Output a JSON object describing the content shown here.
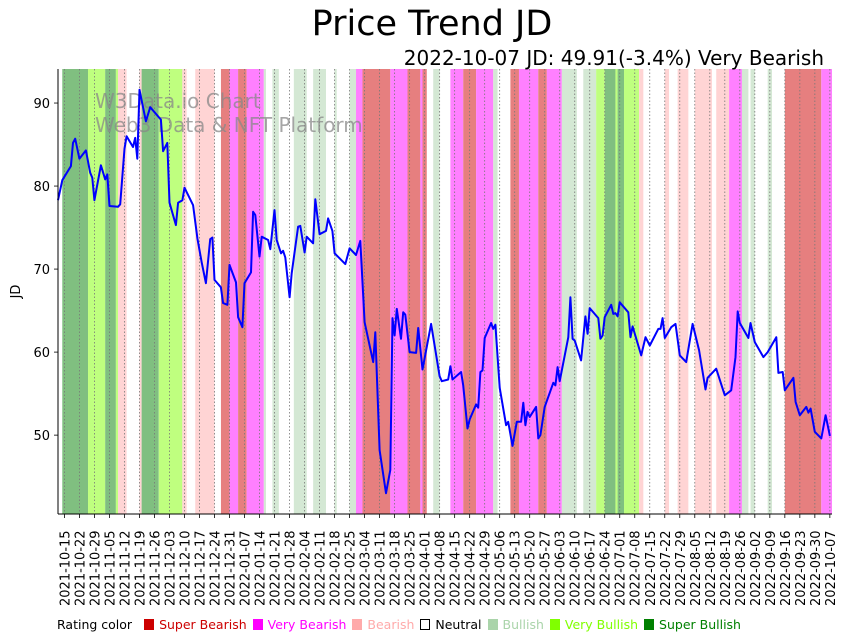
{
  "chart_data": {
    "type": "line",
    "title": "Price Trend JD",
    "subtitle": "2022-10-07 JD: 49.91(-3.4%) Very Bearish",
    "xlabel": "",
    "ylabel": "JD",
    "x_origin_date": "2021-10-12",
    "x_unit": "days since origin",
    "xlim": [
      0,
      361
    ],
    "ylim": [
      40.5,
      94.1
    ],
    "yticks": [
      50,
      60,
      70,
      80,
      90
    ],
    "xtick_first_day": 3,
    "xtick_step_days": 7,
    "xtick_labels": [
      "2021-10-15",
      "2021-10-22",
      "2021-10-29",
      "2021-11-05",
      "2021-11-12",
      "2021-11-19",
      "2021-11-26",
      "2021-12-03",
      "2021-12-10",
      "2021-12-17",
      "2021-12-24",
      "2021-12-31",
      "2022-01-07",
      "2022-01-14",
      "2022-01-21",
      "2022-01-28",
      "2022-02-04",
      "2022-02-11",
      "2022-02-18",
      "2022-02-25",
      "2022-03-04",
      "2022-03-11",
      "2022-03-18",
      "2022-03-25",
      "2022-04-01",
      "2022-04-08",
      "2022-04-15",
      "2022-04-22",
      "2022-04-29",
      "2022-05-06",
      "2022-05-13",
      "2022-05-20",
      "2022-05-27",
      "2022-06-03",
      "2022-06-10",
      "2022-06-17",
      "2022-06-24",
      "2022-07-01",
      "2022-07-08",
      "2022-07-15",
      "2022-07-22",
      "2022-07-29",
      "2022-08-05",
      "2022-08-12",
      "2022-08-19",
      "2022-08-26",
      "2022-09-02",
      "2022-09-09",
      "2022-09-16",
      "2022-09-23",
      "2022-09-30",
      "2022-10-07"
    ],
    "grid": "vertical dotted at x ticks",
    "watermark": [
      "W3Data.io Chart",
      "Web3 Data & NFT Platform"
    ],
    "series": [
      {
        "name": "JD",
        "color": "#0000ff",
        "points": [
          [
            0,
            78.3
          ],
          [
            2,
            80.7
          ],
          [
            6,
            82.4
          ],
          [
            7,
            85.2
          ],
          [
            8,
            85.7
          ],
          [
            10,
            83.3
          ],
          [
            13,
            84.3
          ],
          [
            15,
            81.6
          ],
          [
            16,
            81
          ],
          [
            17,
            78.3
          ],
          [
            20,
            82.5
          ],
          [
            22,
            80.8
          ],
          [
            23,
            81.4
          ],
          [
            24,
            77.6
          ],
          [
            28,
            77.5
          ],
          [
            29,
            77.8
          ],
          [
            31,
            84.5
          ],
          [
            32,
            86
          ],
          [
            35,
            84.7
          ],
          [
            36,
            85.8
          ],
          [
            37,
            83.3
          ],
          [
            38,
            91.6
          ],
          [
            41,
            87.8
          ],
          [
            43,
            89.5
          ],
          [
            48,
            88
          ],
          [
            49,
            84.2
          ],
          [
            51,
            85.2
          ],
          [
            52,
            78
          ],
          [
            55,
            75.3
          ],
          [
            56,
            78
          ],
          [
            58,
            78.3
          ],
          [
            59,
            79.8
          ],
          [
            63,
            77.7
          ],
          [
            65,
            73.7
          ],
          [
            67,
            70.8
          ],
          [
            69,
            68.3
          ],
          [
            71,
            73.6
          ],
          [
            72,
            73.8
          ],
          [
            73,
            68.7
          ],
          [
            76,
            67.8
          ],
          [
            77,
            65.9
          ],
          [
            79,
            65.7
          ],
          [
            80,
            70.5
          ],
          [
            83,
            68.4
          ],
          [
            84,
            64.2
          ],
          [
            86,
            63
          ],
          [
            87,
            68.3
          ],
          [
            90,
            69.6
          ],
          [
            91,
            76.9
          ],
          [
            92,
            76.5
          ],
          [
            94,
            71.5
          ],
          [
            95,
            73.9
          ],
          [
            98,
            73.5
          ],
          [
            99,
            72.4
          ],
          [
            101,
            77.1
          ],
          [
            102,
            73.5
          ],
          [
            104,
            71.9
          ],
          [
            105,
            72.2
          ],
          [
            106,
            71.4
          ],
          [
            108,
            66.6
          ],
          [
            109,
            69.5
          ],
          [
            112,
            75.1
          ],
          [
            113,
            75.2
          ],
          [
            115,
            72
          ],
          [
            116,
            73.9
          ],
          [
            119,
            73.1
          ],
          [
            120,
            78.4
          ],
          [
            122,
            74.2
          ],
          [
            125,
            74.6
          ],
          [
            126,
            76.1
          ],
          [
            128,
            74.6
          ],
          [
            129,
            71.9
          ],
          [
            134,
            70.6
          ],
          [
            136,
            72.5
          ],
          [
            139,
            71.7
          ],
          [
            141,
            73.4
          ],
          [
            143,
            63.6
          ],
          [
            147,
            58.8
          ],
          [
            148,
            62.4
          ],
          [
            150,
            48.2
          ],
          [
            153,
            43
          ],
          [
            155,
            45.8
          ],
          [
            156,
            64.1
          ],
          [
            157,
            62
          ],
          [
            158,
            65.2
          ],
          [
            160,
            61.6
          ],
          [
            161,
            64.8
          ],
          [
            162,
            64.5
          ],
          [
            164,
            60
          ],
          [
            167,
            59.9
          ],
          [
            168,
            62.9
          ],
          [
            170,
            57.9
          ],
          [
            174,
            63.4
          ],
          [
            178,
            57.1
          ],
          [
            179,
            56.5
          ],
          [
            182,
            56.7
          ],
          [
            183,
            58.3
          ],
          [
            184,
            56.7
          ],
          [
            188,
            57.6
          ],
          [
            189,
            56
          ],
          [
            191,
            50.8
          ],
          [
            192,
            51.9
          ],
          [
            195,
            53.7
          ],
          [
            196,
            53.3
          ],
          [
            197,
            57.6
          ],
          [
            198,
            57.8
          ],
          [
            199,
            61.7
          ],
          [
            202,
            63.5
          ],
          [
            203,
            62.8
          ],
          [
            204,
            63.3
          ],
          [
            206,
            55.7
          ],
          [
            209,
            51.2
          ],
          [
            210,
            51.6
          ],
          [
            212,
            48.7
          ],
          [
            214,
            51.6
          ],
          [
            216,
            51.6
          ],
          [
            217,
            53.9
          ],
          [
            218,
            51.2
          ],
          [
            219,
            52.8
          ],
          [
            220,
            52.2
          ],
          [
            223,
            53.4
          ],
          [
            224,
            49.6
          ],
          [
            225,
            50
          ],
          [
            227,
            53.4
          ],
          [
            231,
            56.3
          ],
          [
            232,
            56
          ],
          [
            233,
            58.2
          ],
          [
            234,
            56.5
          ],
          [
            238,
            61.8
          ],
          [
            239,
            66.6
          ],
          [
            240,
            61.6
          ],
          [
            241,
            61.4
          ],
          [
            244,
            59
          ],
          [
            246,
            64.3
          ],
          [
            247,
            62.2
          ],
          [
            248,
            65.3
          ],
          [
            252,
            64.1
          ],
          [
            253,
            61.6
          ],
          [
            254,
            62
          ],
          [
            255,
            64.2
          ],
          [
            258,
            65.7
          ],
          [
            259,
            64.6
          ],
          [
            260,
            64.7
          ],
          [
            261,
            64.3
          ],
          [
            262,
            66
          ],
          [
            266,
            64.8
          ],
          [
            267,
            61.8
          ],
          [
            268,
            63.1
          ],
          [
            272,
            59.6
          ],
          [
            274,
            61.8
          ],
          [
            276,
            60.8
          ],
          [
            280,
            62.8
          ],
          [
            281,
            62.8
          ],
          [
            282,
            64.1
          ],
          [
            283,
            61.7
          ],
          [
            286,
            63
          ],
          [
            288,
            63.4
          ],
          [
            290,
            59.6
          ],
          [
            293,
            58.8
          ],
          [
            296,
            63.4
          ],
          [
            299,
            60.2
          ],
          [
            302,
            55.5
          ],
          [
            303,
            56.9
          ],
          [
            307,
            58
          ],
          [
            311,
            54.8
          ],
          [
            314,
            55.4
          ],
          [
            316,
            59.4
          ],
          [
            317,
            64.9
          ],
          [
            318,
            63.5
          ],
          [
            322,
            61.7
          ],
          [
            323,
            63.5
          ],
          [
            325,
            61.2
          ],
          [
            329,
            59.4
          ],
          [
            331,
            60
          ],
          [
            335,
            61.8
          ],
          [
            336,
            57.5
          ],
          [
            338,
            57.6
          ],
          [
            339,
            55.4
          ],
          [
            343,
            56.9
          ],
          [
            344,
            54
          ],
          [
            346,
            52.4
          ],
          [
            349,
            53.4
          ],
          [
            350,
            52.7
          ],
          [
            351,
            53.2
          ],
          [
            353,
            50.4
          ],
          [
            356,
            49.6
          ],
          [
            358,
            52.4
          ],
          [
            360,
            49.91
          ]
        ]
      }
    ],
    "rating_bands": [
      [
        2,
        14,
        "super_bullish"
      ],
      [
        14,
        22,
        "very_bullish"
      ],
      [
        22,
        27,
        "super_bullish"
      ],
      [
        27,
        28,
        "very_bullish"
      ],
      [
        28,
        32,
        "bearish"
      ],
      [
        38,
        39,
        "bearish"
      ],
      [
        39,
        47,
        "super_bullish"
      ],
      [
        47,
        58,
        "very_bullish"
      ],
      [
        58,
        60,
        "bearish"
      ],
      [
        64,
        73,
        "bearish"
      ],
      [
        76,
        80,
        "super_bearish"
      ],
      [
        80,
        84,
        "very_bearish"
      ],
      [
        84,
        88,
        "super_bearish"
      ],
      [
        88,
        96,
        "very_bearish"
      ],
      [
        96,
        97,
        "bullish"
      ],
      [
        100,
        103,
        "bullish"
      ],
      [
        110,
        116,
        "bullish"
      ],
      [
        119,
        125,
        "bullish"
      ],
      [
        129,
        130,
        "bullish"
      ],
      [
        136,
        139,
        "bullish"
      ],
      [
        139,
        142,
        "very_bearish"
      ],
      [
        142,
        155,
        "super_bearish"
      ],
      [
        155,
        163,
        "very_bearish"
      ],
      [
        163,
        169,
        "super_bearish"
      ],
      [
        169,
        170,
        "very_bearish"
      ],
      [
        170,
        172,
        "super_bearish"
      ],
      [
        175,
        178,
        "bullish"
      ],
      [
        183,
        189,
        "very_bearish"
      ],
      [
        189,
        195,
        "super_bearish"
      ],
      [
        195,
        203,
        "very_bearish"
      ],
      [
        203,
        205,
        "bullish"
      ],
      [
        211,
        215,
        "super_bearish"
      ],
      [
        215,
        224,
        "very_bearish"
      ],
      [
        224,
        228,
        "super_bearish"
      ],
      [
        228,
        235,
        "very_bearish"
      ],
      [
        235,
        242,
        "bullish"
      ],
      [
        245,
        251,
        "bullish"
      ],
      [
        251,
        255,
        "very_bullish"
      ],
      [
        255,
        260,
        "super_bullish"
      ],
      [
        260,
        261,
        "very_bullish"
      ],
      [
        261,
        264,
        "super_bullish"
      ],
      [
        264,
        271,
        "very_bullish"
      ],
      [
        271,
        273,
        "bearish"
      ],
      [
        283,
        285,
        "bearish"
      ],
      [
        289,
        294,
        "bearish"
      ],
      [
        297,
        305,
        "bearish"
      ],
      [
        307,
        313,
        "bearish"
      ],
      [
        313,
        319,
        "very_bearish"
      ],
      [
        319,
        322,
        "bullish"
      ],
      [
        323,
        325,
        "bullish"
      ],
      [
        331,
        333,
        "bullish"
      ],
      [
        339,
        356,
        "super_bearish"
      ],
      [
        356,
        361,
        "very_bearish"
      ]
    ],
    "band_colors": {
      "super_bearish": "#e67f7f",
      "very_bearish": "#ff80ff",
      "bearish": "#ffd4d4",
      "bullish": "#d4e8d4",
      "very_bullish": "#bfff7f",
      "super_bullish": "#80bf80"
    },
    "legend": {
      "title": "Rating color",
      "placement": "bottom",
      "items": [
        {
          "label": "Super Bearish",
          "color": "#cc0000"
        },
        {
          "label": "Very Bearish",
          "color": "#ff00ff"
        },
        {
          "label": "Bearish",
          "color": "#ffaaaa"
        },
        {
          "label": "Neutral",
          "color": "#ffffff"
        },
        {
          "label": "Bullish",
          "color": "#aad4aa"
        },
        {
          "label": "Very Bullish",
          "color": "#80ff00"
        },
        {
          "label": "Super Bullish",
          "color": "#008000"
        }
      ]
    }
  }
}
